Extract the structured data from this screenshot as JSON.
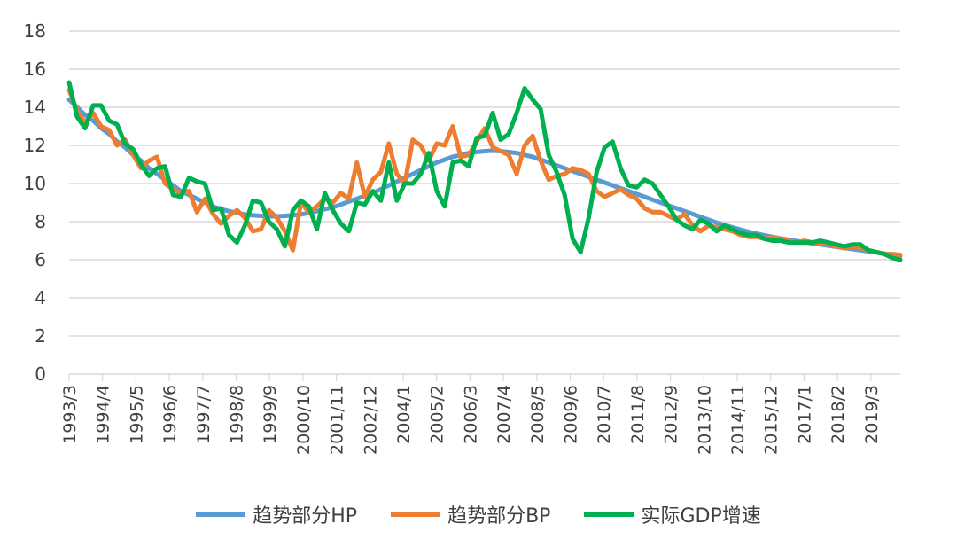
{
  "chart_data": {
    "type": "line",
    "title": "",
    "xlabel": "",
    "ylabel": "",
    "ylim": [
      0,
      18
    ],
    "yticks": [
      "0",
      "2",
      "4",
      "6",
      "8",
      "10",
      "12",
      "14",
      "16",
      "18"
    ],
    "grid": true,
    "legend_position": "bottom",
    "x_tick_labels": [
      "1993/3",
      "1994/4",
      "1995/5",
      "1996/6",
      "1997/7",
      "1998/8",
      "1999/9",
      "2000/10",
      "2001/11",
      "2002/12",
      "2004/1",
      "2005/2",
      "2006/3",
      "2007/4",
      "2008/5",
      "2009/6",
      "2010/7",
      "2011/8",
      "2012/9",
      "2013/10",
      "2014/11",
      "2015/12",
      "2017/1",
      "2018/2",
      "2019/3"
    ],
    "series": [
      {
        "name": "趋势部分HP",
        "color": "#5B9BD5",
        "values": [
          14.4,
          14.0,
          13.6,
          13.3,
          12.9,
          12.6,
          12.2,
          11.9,
          11.5,
          11.2,
          10.8,
          10.5,
          10.2,
          9.9,
          9.6,
          9.4,
          9.2,
          9.0,
          8.8,
          8.65,
          8.55,
          8.45,
          8.38,
          8.33,
          8.3,
          8.28,
          8.28,
          8.3,
          8.33,
          8.38,
          8.45,
          8.55,
          8.65,
          8.75,
          8.9,
          9.05,
          9.2,
          9.35,
          9.5,
          9.7,
          9.9,
          10.1,
          10.3,
          10.5,
          10.7,
          10.9,
          11.1,
          11.25,
          11.4,
          11.5,
          11.6,
          11.65,
          11.7,
          11.72,
          11.7,
          11.65,
          11.6,
          11.5,
          11.4,
          11.25,
          11.1,
          10.95,
          10.8,
          10.65,
          10.5,
          10.35,
          10.2,
          10.05,
          9.9,
          9.75,
          9.6,
          9.45,
          9.3,
          9.15,
          9.0,
          8.85,
          8.7,
          8.55,
          8.4,
          8.25,
          8.1,
          7.95,
          7.82,
          7.7,
          7.58,
          7.47,
          7.37,
          7.28,
          7.2,
          7.12,
          7.05,
          6.98,
          6.92,
          6.86,
          6.8,
          6.74,
          6.68,
          6.62,
          6.56,
          6.5,
          6.44,
          6.38,
          6.32,
          6.26,
          6.2
        ]
      },
      {
        "name": "趋势部分BP",
        "color": "#ED7D31",
        "values": [
          14.9,
          13.8,
          13.2,
          13.7,
          13.0,
          12.8,
          12.0,
          12.3,
          11.5,
          10.8,
          11.2,
          11.4,
          10.0,
          9.7,
          9.5,
          9.6,
          8.5,
          9.2,
          8.4,
          7.9,
          8.3,
          8.6,
          8.2,
          7.5,
          7.6,
          8.6,
          8.2,
          7.5,
          6.5,
          9.0,
          8.5,
          8.8,
          9.2,
          9.0,
          9.5,
          9.2,
          11.1,
          9.3,
          10.2,
          10.6,
          12.1,
          10.5,
          10.0,
          12.3,
          12.0,
          11.2,
          12.1,
          12.0,
          13.0,
          11.4,
          11.5,
          12.2,
          12.9,
          11.9,
          11.7,
          11.5,
          10.5,
          12.0,
          12.5,
          11.2,
          10.2,
          10.4,
          10.5,
          10.8,
          10.7,
          10.5,
          9.6,
          9.3,
          9.5,
          9.7,
          9.4,
          9.2,
          8.7,
          8.5,
          8.5,
          8.3,
          8.1,
          8.4,
          7.8,
          7.5,
          7.8,
          7.7,
          7.6,
          7.5,
          7.3,
          7.2,
          7.2,
          7.1,
          7.2,
          7.1,
          7.0,
          6.9,
          7.0,
          6.9,
          6.9,
          6.8,
          6.7,
          6.6,
          6.7,
          6.6,
          6.5,
          6.4,
          6.3,
          6.3,
          6.25
        ]
      },
      {
        "name": "实际GDP增速",
        "color": "#00B050",
        "values": [
          15.3,
          13.5,
          12.9,
          14.1,
          14.1,
          13.3,
          13.1,
          12.1,
          11.8,
          11.0,
          10.4,
          10.8,
          10.9,
          9.4,
          9.3,
          10.3,
          10.1,
          10.0,
          8.6,
          8.7,
          7.3,
          6.9,
          7.8,
          9.1,
          9.0,
          8.0,
          7.6,
          6.7,
          8.6,
          9.1,
          8.8,
          7.6,
          9.5,
          8.6,
          7.9,
          7.5,
          9.0,
          8.9,
          9.6,
          9.1,
          11.1,
          9.1,
          10.0,
          10.0,
          10.5,
          11.6,
          9.6,
          8.8,
          11.1,
          11.2,
          10.9,
          12.4,
          12.5,
          13.7,
          12.3,
          12.6,
          13.7,
          15.0,
          14.4,
          13.9,
          11.5,
          10.6,
          9.4,
          7.1,
          6.4,
          8.2,
          10.6,
          11.9,
          12.2,
          10.8,
          9.9,
          9.8,
          10.2,
          10.0,
          9.4,
          8.8,
          8.1,
          7.8,
          7.6,
          8.1,
          7.9,
          7.5,
          7.8,
          7.6,
          7.4,
          7.3,
          7.3,
          7.1,
          7.0,
          7.0,
          6.9,
          6.9,
          6.9,
          6.9,
          7.0,
          6.9,
          6.8,
          6.7,
          6.8,
          6.8,
          6.5,
          6.4,
          6.3,
          6.1,
          6.0
        ]
      }
    ]
  }
}
